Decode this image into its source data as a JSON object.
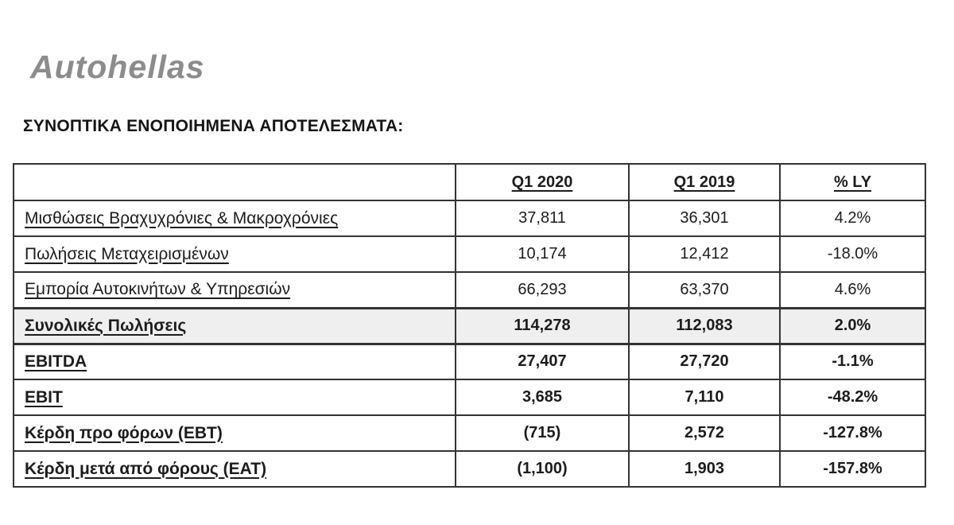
{
  "page": {
    "logo_text": "Autohellas",
    "heading": "ΣΥΝΟΠΤΙΚΑ ΕΝΟΠΟΙΗΜΕΝΑ ΑΠΟΤΕΛΕΣΜΑΤΑ:"
  },
  "colors": {
    "logo_gray": "#8c8c8c",
    "border_dark": "#333333",
    "shaded_row_bg": "#efefef",
    "text": "#1c1c1c"
  },
  "table": {
    "header": {
      "label": "",
      "col1": "Q1 2020",
      "col2": "Q1 2019",
      "col3": "% LY"
    },
    "rows": [
      {
        "label": "Μισθώσεις Βραχυχρόνιες & Μακροχρόνιες",
        "q1_2020": "37,811",
        "q1_2019": "36,301",
        "pct_ly": "4.2%",
        "emphasis": false,
        "shaded": false
      },
      {
        "label": "Πωλήσεις Μεταχειρισμένων",
        "q1_2020": "10,174",
        "q1_2019": "12,412",
        "pct_ly": "-18.0%",
        "emphasis": false,
        "shaded": false
      },
      {
        "label": "Εμπορία Αυτοκινήτων & Υπηρεσιών",
        "q1_2020": "66,293",
        "q1_2019": "63,370",
        "pct_ly": "4.6%",
        "emphasis": false,
        "shaded": false
      },
      {
        "label": "Συνολικές Πωλήσεις",
        "q1_2020": "114,278",
        "q1_2019": "112,083",
        "pct_ly": "2.0%",
        "emphasis": true,
        "shaded": true
      },
      {
        "label": "EBITDA",
        "q1_2020": "27,407",
        "q1_2019": "27,720",
        "pct_ly": "-1.1%",
        "emphasis": true,
        "shaded": false
      },
      {
        "label": "EBIT",
        "q1_2020": "3,685",
        "q1_2019": "7,110",
        "pct_ly": "-48.2%",
        "emphasis": true,
        "shaded": false
      },
      {
        "label": "Κέρδη προ φόρων (EBT)",
        "q1_2020": "(715)",
        "q1_2019": "2,572",
        "pct_ly": "-127.8%",
        "emphasis": true,
        "shaded": false
      },
      {
        "label": "Κέρδη μετά από φόρους (EAT)",
        "q1_2020": "(1,100)",
        "q1_2019": "1,903",
        "pct_ly": "-157.8%",
        "emphasis": true,
        "shaded": false
      }
    ]
  }
}
